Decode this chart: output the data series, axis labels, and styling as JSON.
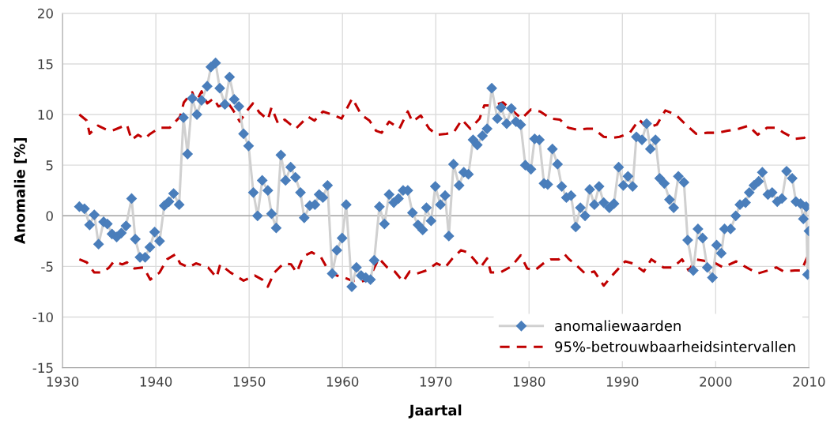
{
  "chart_data": {
    "type": "line",
    "xlabel": "Jaartal",
    "ylabel": "Anomalie [%]",
    "xlim": [
      1930,
      2010
    ],
    "xticks": [
      1930,
      1940,
      1950,
      1960,
      1970,
      1980,
      1990,
      2000,
      2010
    ],
    "ylim": [
      -15,
      20
    ],
    "yticks": [
      -15,
      -10,
      -5,
      0,
      5,
      10,
      15,
      20
    ],
    "grid": true,
    "legend": "bottom right",
    "ref_lines": [
      {
        "axis": "y",
        "value": 0,
        "color": "#a6a6a6"
      }
    ],
    "series": [
      {
        "name": "anomaliewaarden",
        "color": "#4a7ebb",
        "marker": "diamond",
        "line_style": "solid",
        "x": [
          1931.8,
          1932.35,
          1932.9,
          1933.4,
          1933.86,
          1934.4,
          1934.8,
          1935.3,
          1935.8,
          1936.3,
          1936.8,
          1937.4,
          1937.8,
          1938.3,
          1938.85,
          1939.36,
          1939.87,
          1940.4,
          1940.9,
          1941.4,
          1941.9,
          1942.5,
          1942.96,
          1943.4,
          1943.9,
          1944.4,
          1944.9,
          1945.5,
          1945.9,
          1946.4,
          1946.85,
          1947.4,
          1947.9,
          1948.4,
          1948.9,
          1949.4,
          1949.94,
          1950.45,
          1950.9,
          1951.4,
          1952.0,
          1952.4,
          1952.9,
          1953.4,
          1953.9,
          1954.45,
          1954.96,
          1955.5,
          1955.9,
          1956.5,
          1957.05,
          1957.5,
          1957.9,
          1958.4,
          1958.9,
          1959.4,
          1959.96,
          1960.4,
          1961.0,
          1961.5,
          1962.0,
          1962.5,
          1963.0,
          1963.4,
          1963.96,
          1964.5,
          1965.0,
          1965.5,
          1966.0,
          1966.5,
          1967.0,
          1967.5,
          1968.1,
          1968.6,
          1969.0,
          1969.5,
          1969.95,
          1970.5,
          1971.0,
          1971.4,
          1971.9,
          1972.5,
          1973.0,
          1973.5,
          1974.0,
          1974.45,
          1975.0,
          1975.5,
          1976.0,
          1976.6,
          1977.0,
          1977.6,
          1978.1,
          1978.6,
          1979.1,
          1979.6,
          1980.2,
          1980.6,
          1981.1,
          1981.6,
          1982.0,
          1982.5,
          1983.05,
          1983.5,
          1984.0,
          1984.5,
          1985.0,
          1985.5,
          1986.0,
          1986.5,
          1987.0,
          1987.5,
          1988.0,
          1988.6,
          1989.1,
          1989.6,
          1990.1,
          1990.6,
          1991.1,
          1991.5,
          1992.1,
          1992.6,
          1993.0,
          1993.55,
          1994.0,
          1994.5,
          1995.05,
          1995.5,
          1996.0,
          1996.6,
          1997.0,
          1997.6,
          1998.1,
          1998.6,
          1999.1,
          1999.65,
          2000.1,
          2000.6,
          2000.95,
          2001.6,
          2002.15,
          2002.6,
          2003.2,
          2003.6,
          2004.1,
          2004.6,
          2005.0,
          2005.6,
          2006.05,
          2006.6,
          2007.1,
          2007.6,
          2008.2,
          2008.6,
          2009.1,
          2009.4,
          2009.7,
          2009.85,
          2010.0
        ],
        "values": [
          0.9,
          0.7,
          -0.9,
          0.1,
          -2.8,
          -0.6,
          -0.8,
          -1.8,
          -2.1,
          -1.7,
          -1.0,
          1.7,
          -2.3,
          -4.1,
          -4.1,
          -3.1,
          -1.6,
          -2.5,
          1.0,
          1.4,
          2.2,
          1.1,
          9.7,
          6.1,
          11.6,
          10.0,
          11.4,
          12.8,
          14.7,
          15.1,
          12.6,
          11.0,
          13.7,
          11.5,
          10.8,
          8.1,
          6.9,
          2.3,
          0.0,
          3.5,
          2.5,
          0.2,
          -1.2,
          6.0,
          3.5,
          4.8,
          3.8,
          2.3,
          -0.2,
          1.0,
          1.1,
          2.1,
          1.8,
          3.0,
          -5.7,
          -3.4,
          -2.2,
          1.1,
          -7.0,
          -5.1,
          -5.9,
          -6.1,
          -6.3,
          -4.4,
          0.9,
          -0.8,
          2.1,
          1.3,
          1.7,
          2.5,
          2.5,
          0.3,
          -0.9,
          -1.4,
          0.8,
          -0.5,
          2.9,
          1.1,
          2.0,
          -2.0,
          5.1,
          3.0,
          4.3,
          4.1,
          7.5,
          7.0,
          7.9,
          8.6,
          12.6,
          9.6,
          10.7,
          9.1,
          10.6,
          9.3,
          9.0,
          5.0,
          4.6,
          7.6,
          7.5,
          3.2,
          3.1,
          6.6,
          5.1,
          2.9,
          1.8,
          2.0,
          -1.1,
          0.8,
          0.0,
          2.6,
          1.1,
          2.9,
          1.3,
          0.8,
          1.2,
          4.8,
          3.0,
          3.9,
          2.9,
          7.8,
          7.5,
          9.1,
          6.6,
          7.5,
          3.7,
          3.2,
          1.6,
          0.8,
          3.9,
          3.3,
          -2.4,
          -5.4,
          -1.3,
          -2.2,
          -5.1,
          -6.1,
          -2.9,
          -3.7,
          -1.3,
          -1.3,
          0.0,
          1.1,
          1.3,
          2.3,
          3.0,
          3.4,
          4.3,
          2.1,
          2.3,
          1.4,
          1.7,
          4.4,
          3.7,
          1.4,
          1.2,
          -0.3,
          0.9,
          -5.8,
          -1.5
        ]
      },
      {
        "name": "95%-betrouwbaarheidsintervallen",
        "color": "#c00000",
        "marker": "none",
        "line_style": "dashed",
        "x": [
          1931.8,
          1932.6,
          1932.9,
          1933.8,
          1934.7,
          1935.3,
          1936.1,
          1936.9,
          1937.1,
          1937.4,
          1938.1,
          1938.8,
          1939.4,
          1940.4,
          1941.5,
          1942.6,
          1943.0,
          1943.9,
          1944.3,
          1944.9,
          1945.5,
          1946.2,
          1946.7,
          1947.7,
          1948.3,
          1949.0,
          1949.7,
          1950.4,
          1951.1,
          1952.0,
          1952.4,
          1953.1,
          1953.8,
          1955.0,
          1956.3,
          1957.0,
          1957.9,
          1958.9,
          1959.9,
          1961.05,
          1962.0,
          1962.9,
          1963.6,
          1964.2,
          1965.0,
          1966.1,
          1967.0,
          1967.5,
          1968.4,
          1969.3,
          1970.1,
          1971.1,
          1971.9,
          1972.8,
          1973.7,
          1974.7,
          1975.2,
          1976.2,
          1977.2,
          1978.2,
          1979.2,
          1980.2,
          1981.2,
          1982.3,
          1983.3,
          1984.2,
          1985.2,
          1986.2,
          1986.9,
          1988.0,
          1988.9,
          1989.7,
          1990.8,
          1991.8,
          1992.6,
          1993.7,
          1994.6,
          1995.7,
          1996.8,
          1997.9,
          1999.1,
          2000.2,
          2001.3,
          2002.5,
          2003.5,
          2004.5,
          2005.5,
          2006.5,
          2007.3,
          2008.5,
          2009.5,
          2010.0
        ],
        "values": [
          10.0,
          9.4,
          8.1,
          8.9,
          8.5,
          8.4,
          8.7,
          9.0,
          8.4,
          7.5,
          8.0,
          7.6,
          8.1,
          8.7,
          8.7,
          9.8,
          11.2,
          12.2,
          11.2,
          12.3,
          11.1,
          11.6,
          10.8,
          11.2,
          10.4,
          9.3,
          10.3,
          11.1,
          10.2,
          9.5,
          10.7,
          9.1,
          9.5,
          8.6,
          9.8,
          9.4,
          10.3,
          10.0,
          9.6,
          11.6,
          10.0,
          9.4,
          8.4,
          8.2,
          9.3,
          8.6,
          10.3,
          9.3,
          9.9,
          8.6,
          8.0,
          8.1,
          8.2,
          9.5,
          8.6,
          9.6,
          10.9,
          10.9,
          11.2,
          10.4,
          9.6,
          10.5,
          10.3,
          9.6,
          9.5,
          8.7,
          8.5,
          8.6,
          8.6,
          7.8,
          7.7,
          7.8,
          8.2,
          9.5,
          8.7,
          9.0,
          10.4,
          10.0,
          9.0,
          8.1,
          8.2,
          8.2,
          8.4,
          8.6,
          8.9,
          8.0,
          8.7,
          8.7,
          8.2,
          7.6,
          7.7,
          8.2
        ]
      },
      {
        "color": "#c00000",
        "marker": "none",
        "line_style": "dashed",
        "x": [
          1931.8,
          1932.6,
          1933.4,
          1934.3,
          1935.0,
          1935.5,
          1936.4,
          1936.9,
          1937.7,
          1938.7,
          1939.4,
          1940.4,
          1941.2,
          1942.1,
          1942.6,
          1943.5,
          1944.3,
          1945.6,
          1946.5,
          1946.9,
          1948.0,
          1949.4,
          1950.6,
          1951.4,
          1952.0,
          1952.7,
          1953.7,
          1954.5,
          1955.1,
          1955.8,
          1956.7,
          1957.7,
          1958.5,
          1959.4,
          1960.2,
          1961.0,
          1962.0,
          1962.8,
          1963.9,
          1964.8,
          1965.6,
          1966.5,
          1967.2,
          1968.0,
          1969.0,
          1970.1,
          1971.0,
          1971.8,
          1972.7,
          1973.4,
          1974.1,
          1974.8,
          1975.5,
          1975.9,
          1976.9,
          1978.1,
          1979.1,
          1979.8,
          1980.6,
          1981.8,
          1982.3,
          1983.2,
          1983.8,
          1984.3,
          1985.2,
          1986.0,
          1987.0,
          1988.0,
          1988.9,
          1990.3,
          1991.1,
          1992.3,
          1993.1,
          1994.4,
          1995.4,
          1996.4,
          1997.1,
          1997.9,
          1999.1,
          1999.6,
          2000.8,
          2002.2,
          2003.3,
          2004.5,
          2005.6,
          2006.5,
          2007.3,
          2008.5,
          2009.2,
          2009.8,
          2010.0
        ],
        "values": [
          -4.3,
          -4.6,
          -5.6,
          -5.6,
          -5.1,
          -4.5,
          -4.8,
          -4.6,
          -5.2,
          -5.1,
          -6.3,
          -5.6,
          -4.3,
          -3.8,
          -4.7,
          -5.1,
          -4.7,
          -5.1,
          -6.1,
          -4.8,
          -5.6,
          -6.4,
          -5.9,
          -6.3,
          -7.0,
          -5.6,
          -4.7,
          -4.8,
          -5.6,
          -4.0,
          -3.6,
          -4.1,
          -5.4,
          -5.9,
          -6.1,
          -6.4,
          -6.5,
          -6.3,
          -4.2,
          -5.1,
          -5.5,
          -6.5,
          -5.5,
          -5.7,
          -5.4,
          -4.7,
          -5.1,
          -4.2,
          -3.4,
          -3.6,
          -4.3,
          -5.1,
          -4.2,
          -5.6,
          -5.6,
          -5.0,
          -3.9,
          -5.2,
          -5.4,
          -4.5,
          -4.3,
          -4.3,
          -3.8,
          -4.3,
          -5.0,
          -5.7,
          -5.5,
          -6.9,
          -5.9,
          -4.5,
          -4.7,
          -5.5,
          -4.3,
          -5.1,
          -5.1,
          -4.3,
          -5.4,
          -4.3,
          -4.5,
          -4.5,
          -5.1,
          -4.5,
          -5.1,
          -5.7,
          -5.4,
          -5.1,
          -5.5,
          -5.4,
          -5.4,
          -4.1,
          -5.6
        ]
      }
    ]
  }
}
